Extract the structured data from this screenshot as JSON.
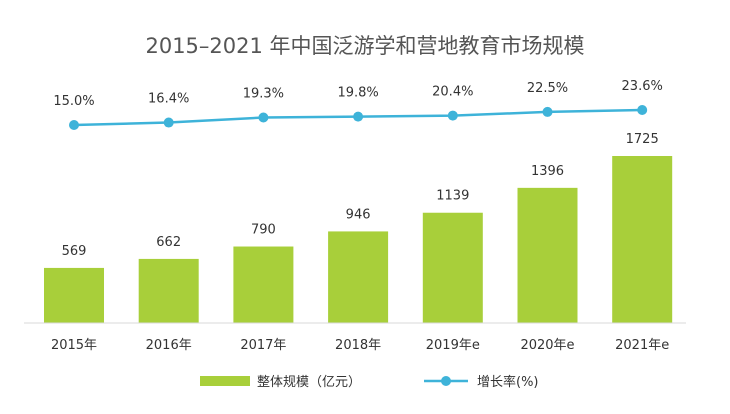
{
  "chart_data": {
    "type": "bar",
    "title": "2015–2021 年中国泛游学和营地教育市场规模",
    "categories": [
      "2015年",
      "2016年",
      "2017年",
      "2018年",
      "2019年e",
      "2020年e",
      "2021年e"
    ],
    "series": [
      {
        "name": "整体规模（亿元）",
        "type": "bar",
        "values": [
          569,
          662,
          790,
          946,
          1139,
          1396,
          1725
        ],
        "labels": [
          "569",
          "662",
          "790",
          "946",
          "1139",
          "1396",
          "1725"
        ],
        "color": "#a8cf3a"
      },
      {
        "name": "增长率(%)",
        "type": "line",
        "values": [
          15.0,
          16.4,
          19.3,
          19.8,
          20.4,
          22.5,
          23.6
        ],
        "labels": [
          "15.0%",
          "16.4%",
          "19.3%",
          "19.8%",
          "20.4%",
          "22.5%",
          "23.6%"
        ],
        "color": "#3eb3d9"
      }
    ],
    "legend_position": "bottom",
    "grid": false
  }
}
